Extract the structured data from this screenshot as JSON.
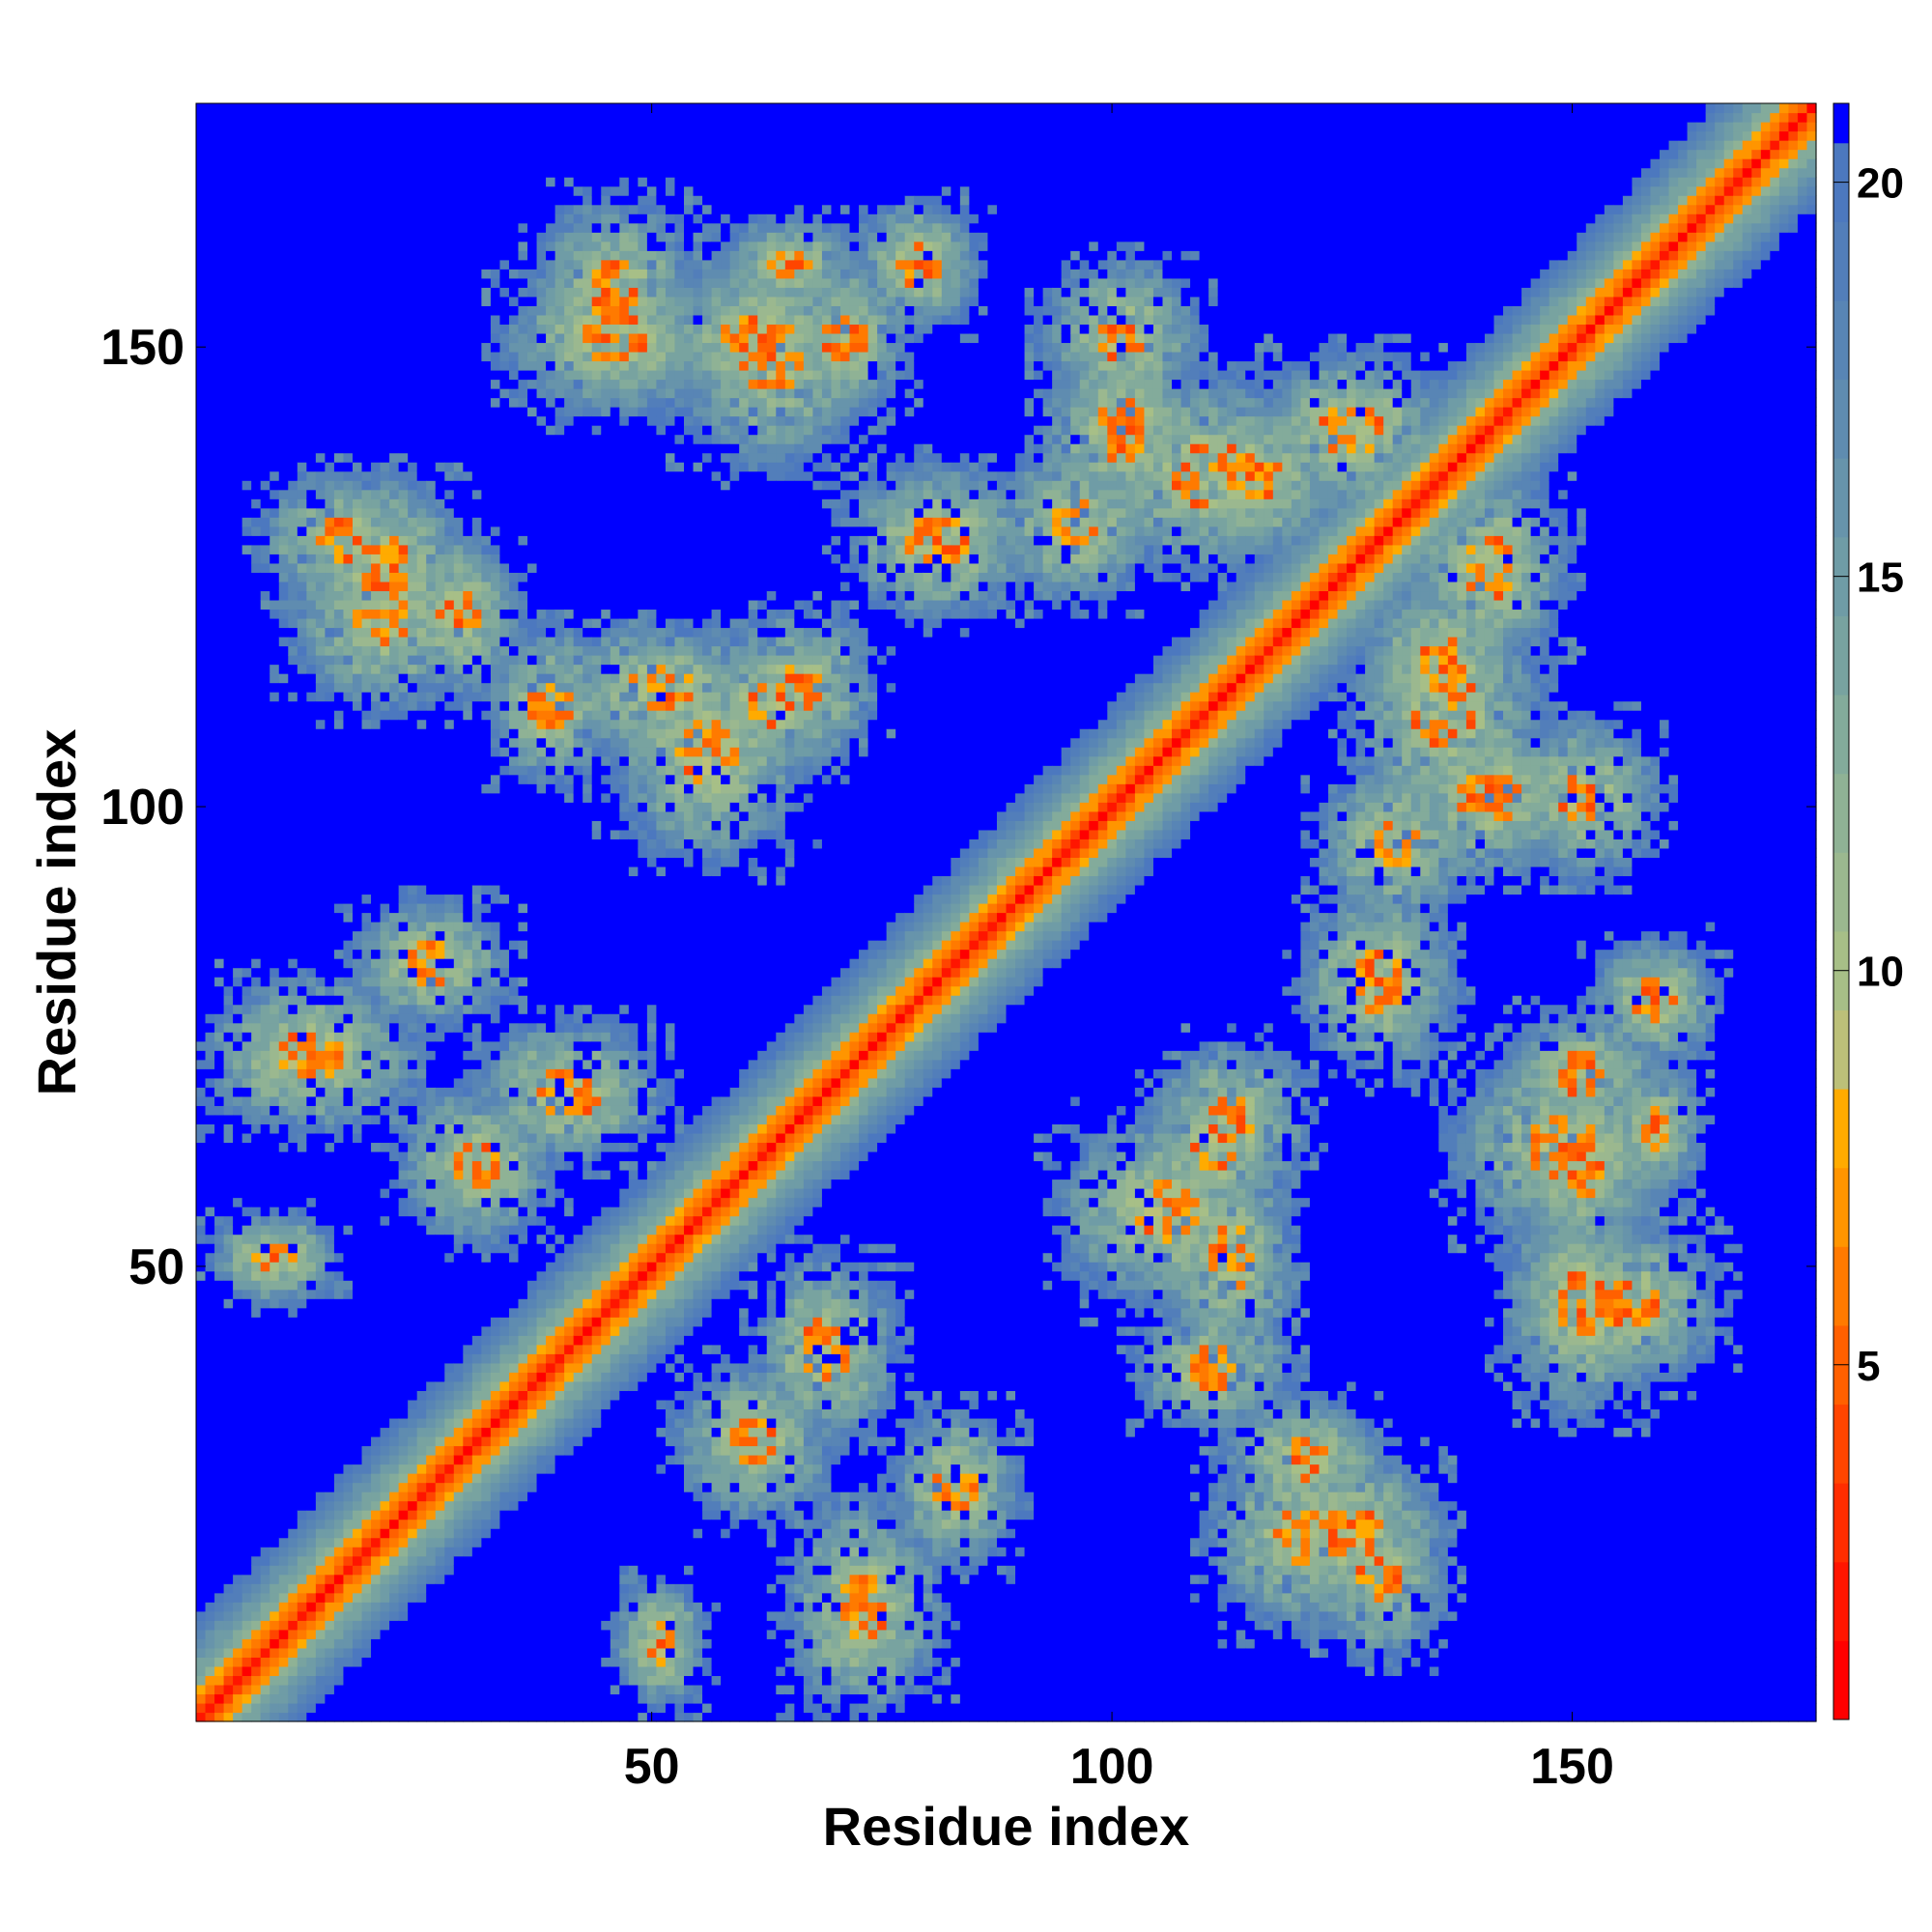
{
  "chart_data": {
    "type": "heatmap",
    "title": "",
    "xlabel": "Residue index",
    "ylabel": "Residue index",
    "n_residues": 176,
    "xlim": [
      1,
      176
    ],
    "ylim": [
      1,
      176
    ],
    "x_ticks": [
      50,
      100,
      150
    ],
    "y_ticks": [
      50,
      100,
      150
    ],
    "x_tick_labels": [
      "50",
      "100",
      "150"
    ],
    "y_tick_labels": [
      "50",
      "100",
      "150"
    ],
    "colorbar": {
      "range": [
        0.5,
        21.0
      ],
      "ticks": [
        5,
        10,
        15,
        20
      ],
      "tick_labels": [
        "5",
        "10",
        "15",
        "20"
      ],
      "levels": [
        {
          "upper": 1.5,
          "color": "#ff0000"
        },
        {
          "upper": 2.5,
          "color": "#ff1500"
        },
        {
          "upper": 3.5,
          "color": "#ff2d00"
        },
        {
          "upper": 4.5,
          "color": "#ff4500"
        },
        {
          "upper": 5.5,
          "color": "#ff6000"
        },
        {
          "upper": 6.5,
          "color": "#ff7a00"
        },
        {
          "upper": 7.5,
          "color": "#ff9500"
        },
        {
          "upper": 8.5,
          "color": "#ffab00"
        },
        {
          "upper": 9.5,
          "color": "#bcc079"
        },
        {
          "upper": 10.5,
          "color": "#a7bf87"
        },
        {
          "upper": 11.5,
          "color": "#9bb88f"
        },
        {
          "upper": 12.5,
          "color": "#8fb295"
        },
        {
          "upper": 13.5,
          "color": "#83ab9b"
        },
        {
          "upper": 14.5,
          "color": "#78a3a0"
        },
        {
          "upper": 15.5,
          "color": "#6f9ca6"
        },
        {
          "upper": 16.5,
          "color": "#6794ab"
        },
        {
          "upper": 17.5,
          "color": "#5f8cb0"
        },
        {
          "upper": 18.5,
          "color": "#5885b5"
        },
        {
          "upper": 19.5,
          "color": "#527eba"
        },
        {
          "upper": 20.5,
          "color": "#4c78bf"
        },
        {
          "upper": 21.0,
          "color": "#0000ff"
        }
      ]
    },
    "description_of_values": "Symmetric residue-residue distance map; near-zero on the main diagonal, large (>20) background.",
    "contact_features": [
      {
        "i": [
          1,
          176
        ],
        "j": [
          1,
          176
        ],
        "kind": "diagonal",
        "min_value": 1
      },
      {
        "i": [
          5,
          45
        ],
        "j": [
          60,
          95
        ],
        "kind": "cluster",
        "min_value": 6
      },
      {
        "i": [
          10,
          30
        ],
        "j": [
          110,
          135
        ],
        "kind": "cluster",
        "min_value": 4
      },
      {
        "i": [
          35,
          75
        ],
        "j": [
          140,
          160
        ],
        "kind": "cluster",
        "min_value": 3
      },
      {
        "i": [
          30,
          70
        ],
        "j": [
          105,
          120
        ],
        "kind": "cluster",
        "min_value": 4
      },
      {
        "i": [
          100,
          120
        ],
        "j": [
          20,
          80
        ],
        "kind": "cluster",
        "min_value": 4
      },
      {
        "i": [
          135,
          165
        ],
        "j": [
          40,
          80
        ],
        "kind": "cluster",
        "min_value": 3
      },
      {
        "i": [
          95,
          145
        ],
        "j": [
          100,
          150
        ],
        "kind": "cluster",
        "min_value": 4
      }
    ]
  }
}
